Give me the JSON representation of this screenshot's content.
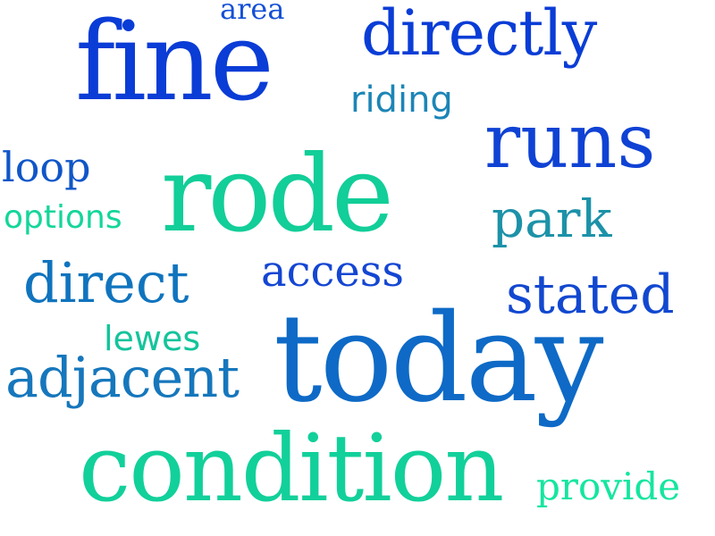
{
  "words": {
    "area": {
      "text": "area",
      "color": "#1550D6"
    },
    "fine": {
      "text": "fine",
      "color": "#0A3CD6"
    },
    "directly": {
      "text": "directly",
      "color": "#0A3DD6"
    },
    "riding": {
      "text": "riding",
      "color": "#1C85B6"
    },
    "runs": {
      "text": "runs",
      "color": "#0F42D4"
    },
    "loop": {
      "text": "loop",
      "color": "#0F56C8"
    },
    "rode": {
      "text": "rode",
      "color": "#12CE98"
    },
    "options": {
      "text": "options",
      "color": "#14D69A"
    },
    "park": {
      "text": "park",
      "color": "#1C92A8"
    },
    "access": {
      "text": "access",
      "color": "#1446D3"
    },
    "direct": {
      "text": "direct",
      "color": "#1074BE"
    },
    "stated": {
      "text": "stated",
      "color": "#1248D0"
    },
    "lewes": {
      "text": "lewes",
      "color": "#14C49C"
    },
    "today": {
      "text": "today",
      "color": "#0E6AC6"
    },
    "adjacent": {
      "text": "adjacent",
      "color": "#1677BC"
    },
    "condition": {
      "text": "condition",
      "color": "#12D09A"
    },
    "provide": {
      "text": "provide",
      "color": "#14E6A0"
    }
  }
}
